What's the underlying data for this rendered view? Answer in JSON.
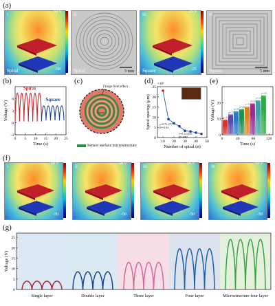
{
  "panels": {
    "a": {
      "label": "(a)",
      "items": [
        {
          "roman": "i",
          "tag": "Spiral",
          "cmax": "50 V",
          "cmin": "-50"
        },
        {
          "roman": "ii",
          "tag": "Spiral",
          "scale": "5 mm"
        },
        {
          "roman": "iii",
          "tag": "Square",
          "cmax": "25 V",
          "cmin": "-25"
        },
        {
          "roman": "iv",
          "tag": "Square",
          "scale": "5 mm"
        }
      ]
    },
    "b": {
      "label": "(b)"
    },
    "c": {
      "label": "(c)",
      "annot_fringe": "Fringe field effect",
      "annot_inner": "Square",
      "caption": "Sensor surface microstructure"
    },
    "d": {
      "label": "(d)",
      "eq1": "y=0.7x-25.7",
      "r1": "R²=0.94",
      "eq2": "y=0.1x+455",
      "r2": "R²=0.97"
    },
    "e": {
      "label": "(e)",
      "note_labels": [
        "n=10",
        "n=15",
        "n=20",
        "n=25",
        "n=30",
        "n=35",
        "n=40",
        "n=45"
      ]
    },
    "f": {
      "label": "(f)",
      "items": [
        {
          "roman": "i",
          "cmax": "50 V",
          "cmin": "-50"
        },
        {
          "roman": "ii",
          "cmax": "50 V",
          "cmin": "-50"
        },
        {
          "roman": "iii",
          "cmax": "50 V",
          "cmin": "-50"
        },
        {
          "roman": "iv",
          "cmax": "50 V",
          "cmin": "-50"
        }
      ]
    },
    "g": {
      "label": "(g)"
    }
  },
  "chart_data": [
    {
      "id": "b",
      "type": "line",
      "xlabel": "Time (s)",
      "ylabel": "Voltage (V)",
      "xlim": [
        0,
        25
      ],
      "ylim": [
        -3,
        9
      ],
      "xticks": [
        0,
        5,
        10,
        15,
        20,
        25
      ],
      "yticks": [
        -3,
        0,
        3,
        6
      ],
      "series": [
        {
          "name": "Spiral",
          "color": "#c8282c",
          "x_range": [
            0,
            13
          ],
          "cycles": 6,
          "min": 0.3,
          "max": 7.4
        },
        {
          "name": "Square",
          "color": "#1e3f8f",
          "x_range": [
            13,
            24
          ],
          "cycles": 5,
          "min": 0.6,
          "max": 4.2
        }
      ]
    },
    {
      "id": "d",
      "type": "scatter",
      "xlabel": "Number of spiral (n)",
      "ylabel": "Spiral spacing (μm)",
      "ylabel_scale": "×10³",
      "xlim": [
        5,
        50
      ],
      "ylim": [
        0,
        25
      ],
      "xticks": [
        10,
        20,
        30,
        40,
        50
      ],
      "yticks": [
        0,
        5,
        10,
        15,
        20,
        25
      ],
      "points": [
        {
          "x": 10,
          "y": 23,
          "color": "#c8282c"
        },
        {
          "x": 15,
          "y": 9.0,
          "color": "#1e3f8f"
        },
        {
          "x": 20,
          "y": 7.0,
          "color": "#1e3f8f"
        },
        {
          "x": 25,
          "y": 5.5,
          "color": "#1e3f8f"
        },
        {
          "x": 30,
          "y": 3.3,
          "color": "#1e3f8f"
        },
        {
          "x": 35,
          "y": 3.0,
          "color": "#1e3f8f"
        },
        {
          "x": 40,
          "y": 2.4,
          "color": "#1e3f8f"
        },
        {
          "x": 45,
          "y": 1.8,
          "color": "#1e3f8f"
        }
      ]
    },
    {
      "id": "e",
      "type": "line",
      "xlabel": "Time (s)",
      "ylabel": "Voltage (V)",
      "xlim": [
        0,
        130
      ],
      "ylim": [
        0,
        30
      ],
      "xticks": [
        0,
        40,
        80,
        120
      ],
      "yticks": [
        0,
        10,
        20
      ],
      "series": [
        {
          "name": "n=10",
          "color": "#d4342c",
          "x_range": [
            2,
            14
          ],
          "max": 9.2
        },
        {
          "name": "n=15",
          "color": "#5a4aa8",
          "x_range": [
            16,
            28
          ],
          "max": 12.5
        },
        {
          "name": "n=20",
          "color": "#2a7bc4",
          "x_range": [
            30,
            42
          ],
          "max": 14.5
        },
        {
          "name": "n=25",
          "color": "#1f8f5a",
          "x_range": [
            44,
            56
          ],
          "max": 15.8
        },
        {
          "name": "n=30",
          "color": "#d88324",
          "x_range": [
            58,
            70
          ],
          "max": 17.5
        },
        {
          "name": "n=35",
          "color": "#9a2c8c",
          "x_range": [
            72,
            84
          ],
          "max": 19.5
        },
        {
          "name": "n=40",
          "color": "#3aa0a0",
          "x_range": [
            86,
            98
          ],
          "max": 21.5
        },
        {
          "name": "n=45",
          "color": "#30a843",
          "x_range": [
            100,
            112
          ],
          "max": 24.5
        }
      ]
    },
    {
      "id": "g",
      "type": "line",
      "ylabel": "Voltage (V)",
      "ylim": [
        0,
        27
      ],
      "yticks": [
        0,
        5,
        10,
        15,
        20,
        25
      ],
      "series": [
        {
          "name": "Single layer",
          "color": "#a8242a",
          "bg": "#dce8f3",
          "max": 4.0
        },
        {
          "name": "Double layer",
          "color": "#1e3f8f",
          "bg": "#dbeaf2",
          "max": 8.5
        },
        {
          "name": "Three layer",
          "color": "#d2679a",
          "bg": "#f7dde6",
          "max": 13.0
        },
        {
          "name": "Four layer",
          "color": "#1c5fa8",
          "bg": "#dde2ef",
          "max": 19.5
        },
        {
          "name": "Microstructure four layer",
          "color": "#3aa046",
          "bg": "#e3f0dc",
          "max": 24.0
        }
      ]
    }
  ]
}
